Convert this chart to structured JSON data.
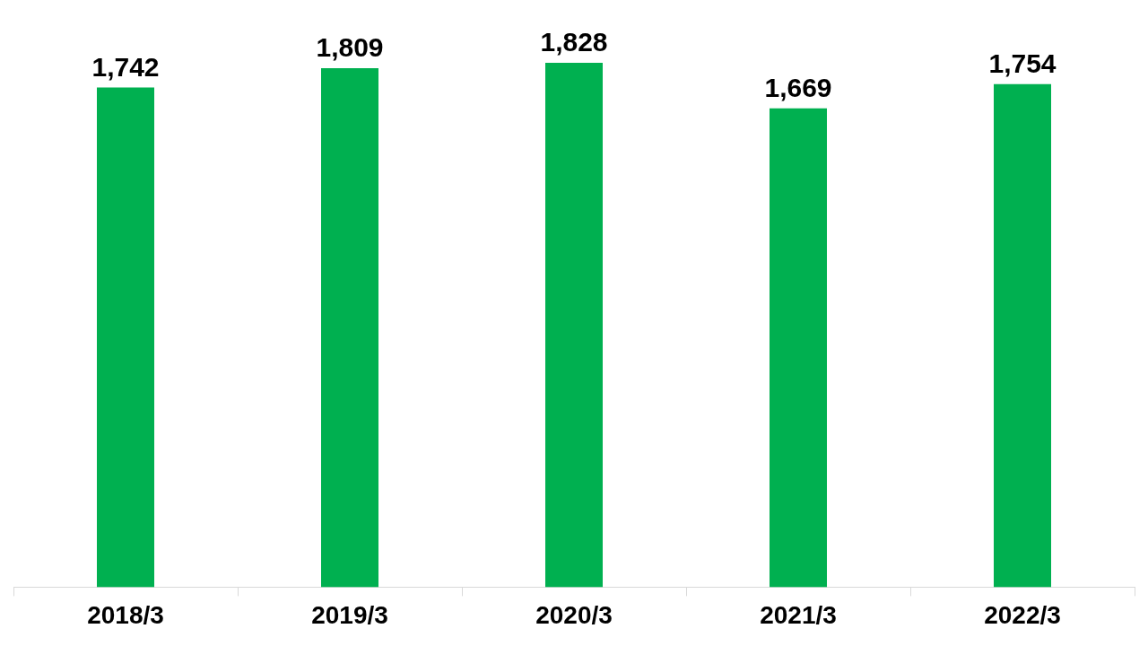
{
  "chart_data": {
    "type": "bar",
    "categories": [
      "2018/3",
      "2019/3",
      "2020/3",
      "2021/3",
      "2022/3"
    ],
    "values": [
      1742,
      1809,
      1828,
      1669,
      1754
    ],
    "color": "#00b050",
    "value_labels": [
      "1,742",
      "1,809",
      "1,828",
      "1,669",
      "1,754"
    ],
    "tick_labels": "x"
  }
}
